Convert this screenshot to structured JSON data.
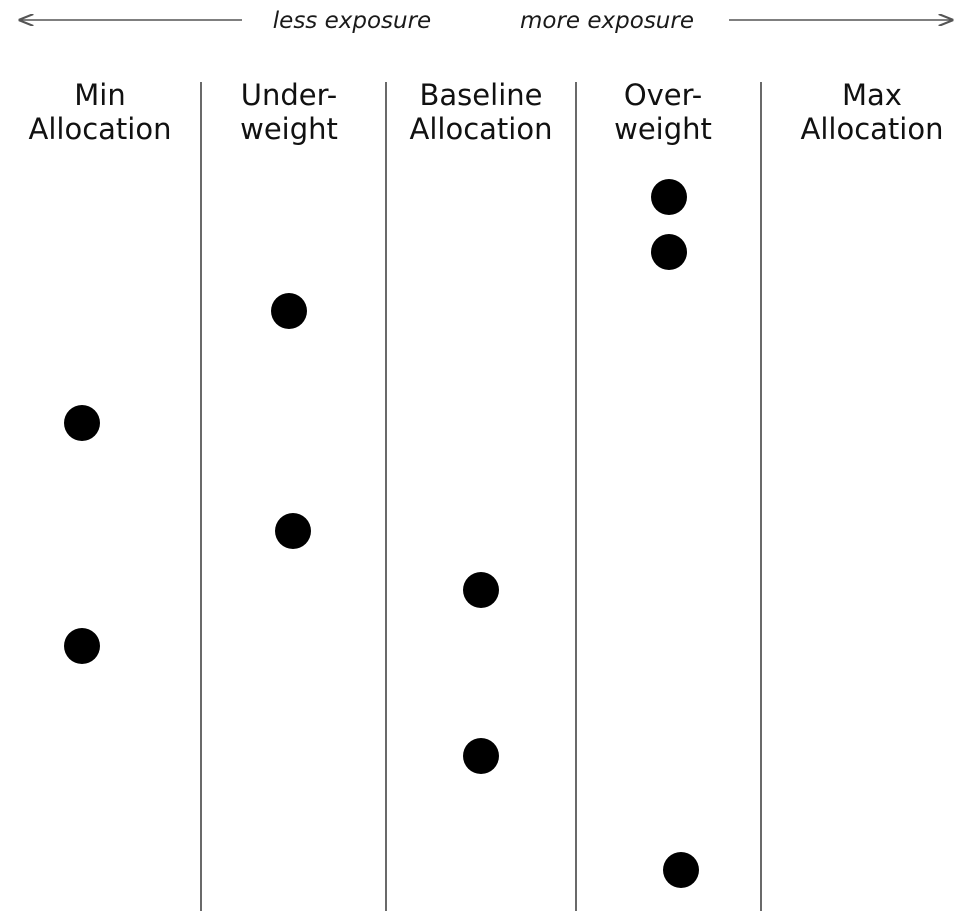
{
  "chart_data": {
    "type": "scatter",
    "header": {
      "left_label": "less exposure",
      "right_label": "more exposure"
    },
    "categories": [
      [
        "Min",
        "Allocation"
      ],
      [
        "Under-",
        "weight"
      ],
      [
        "Baseline",
        "Allocation"
      ],
      [
        "Over-",
        "weight"
      ],
      [
        "Max",
        "Allocation"
      ]
    ],
    "points": [
      {
        "category": "Over-weight",
        "row": 1
      },
      {
        "category": "Over-weight",
        "row": 2
      },
      {
        "category": "Under-weight",
        "row": 3
      },
      {
        "category": "Min Allocation",
        "row": 4
      },
      {
        "category": "Under-weight",
        "row": 5
      },
      {
        "category": "Baseline Allocation",
        "row": 6
      },
      {
        "category": "Min Allocation",
        "row": 7
      },
      {
        "category": "Baseline Allocation",
        "row": 8
      },
      {
        "category": "Over-weight",
        "row": 9
      }
    ],
    "grid": true,
    "legend": "none",
    "colors": {
      "point": "#000000",
      "divider": "#444444",
      "arrow": "#555555"
    }
  }
}
